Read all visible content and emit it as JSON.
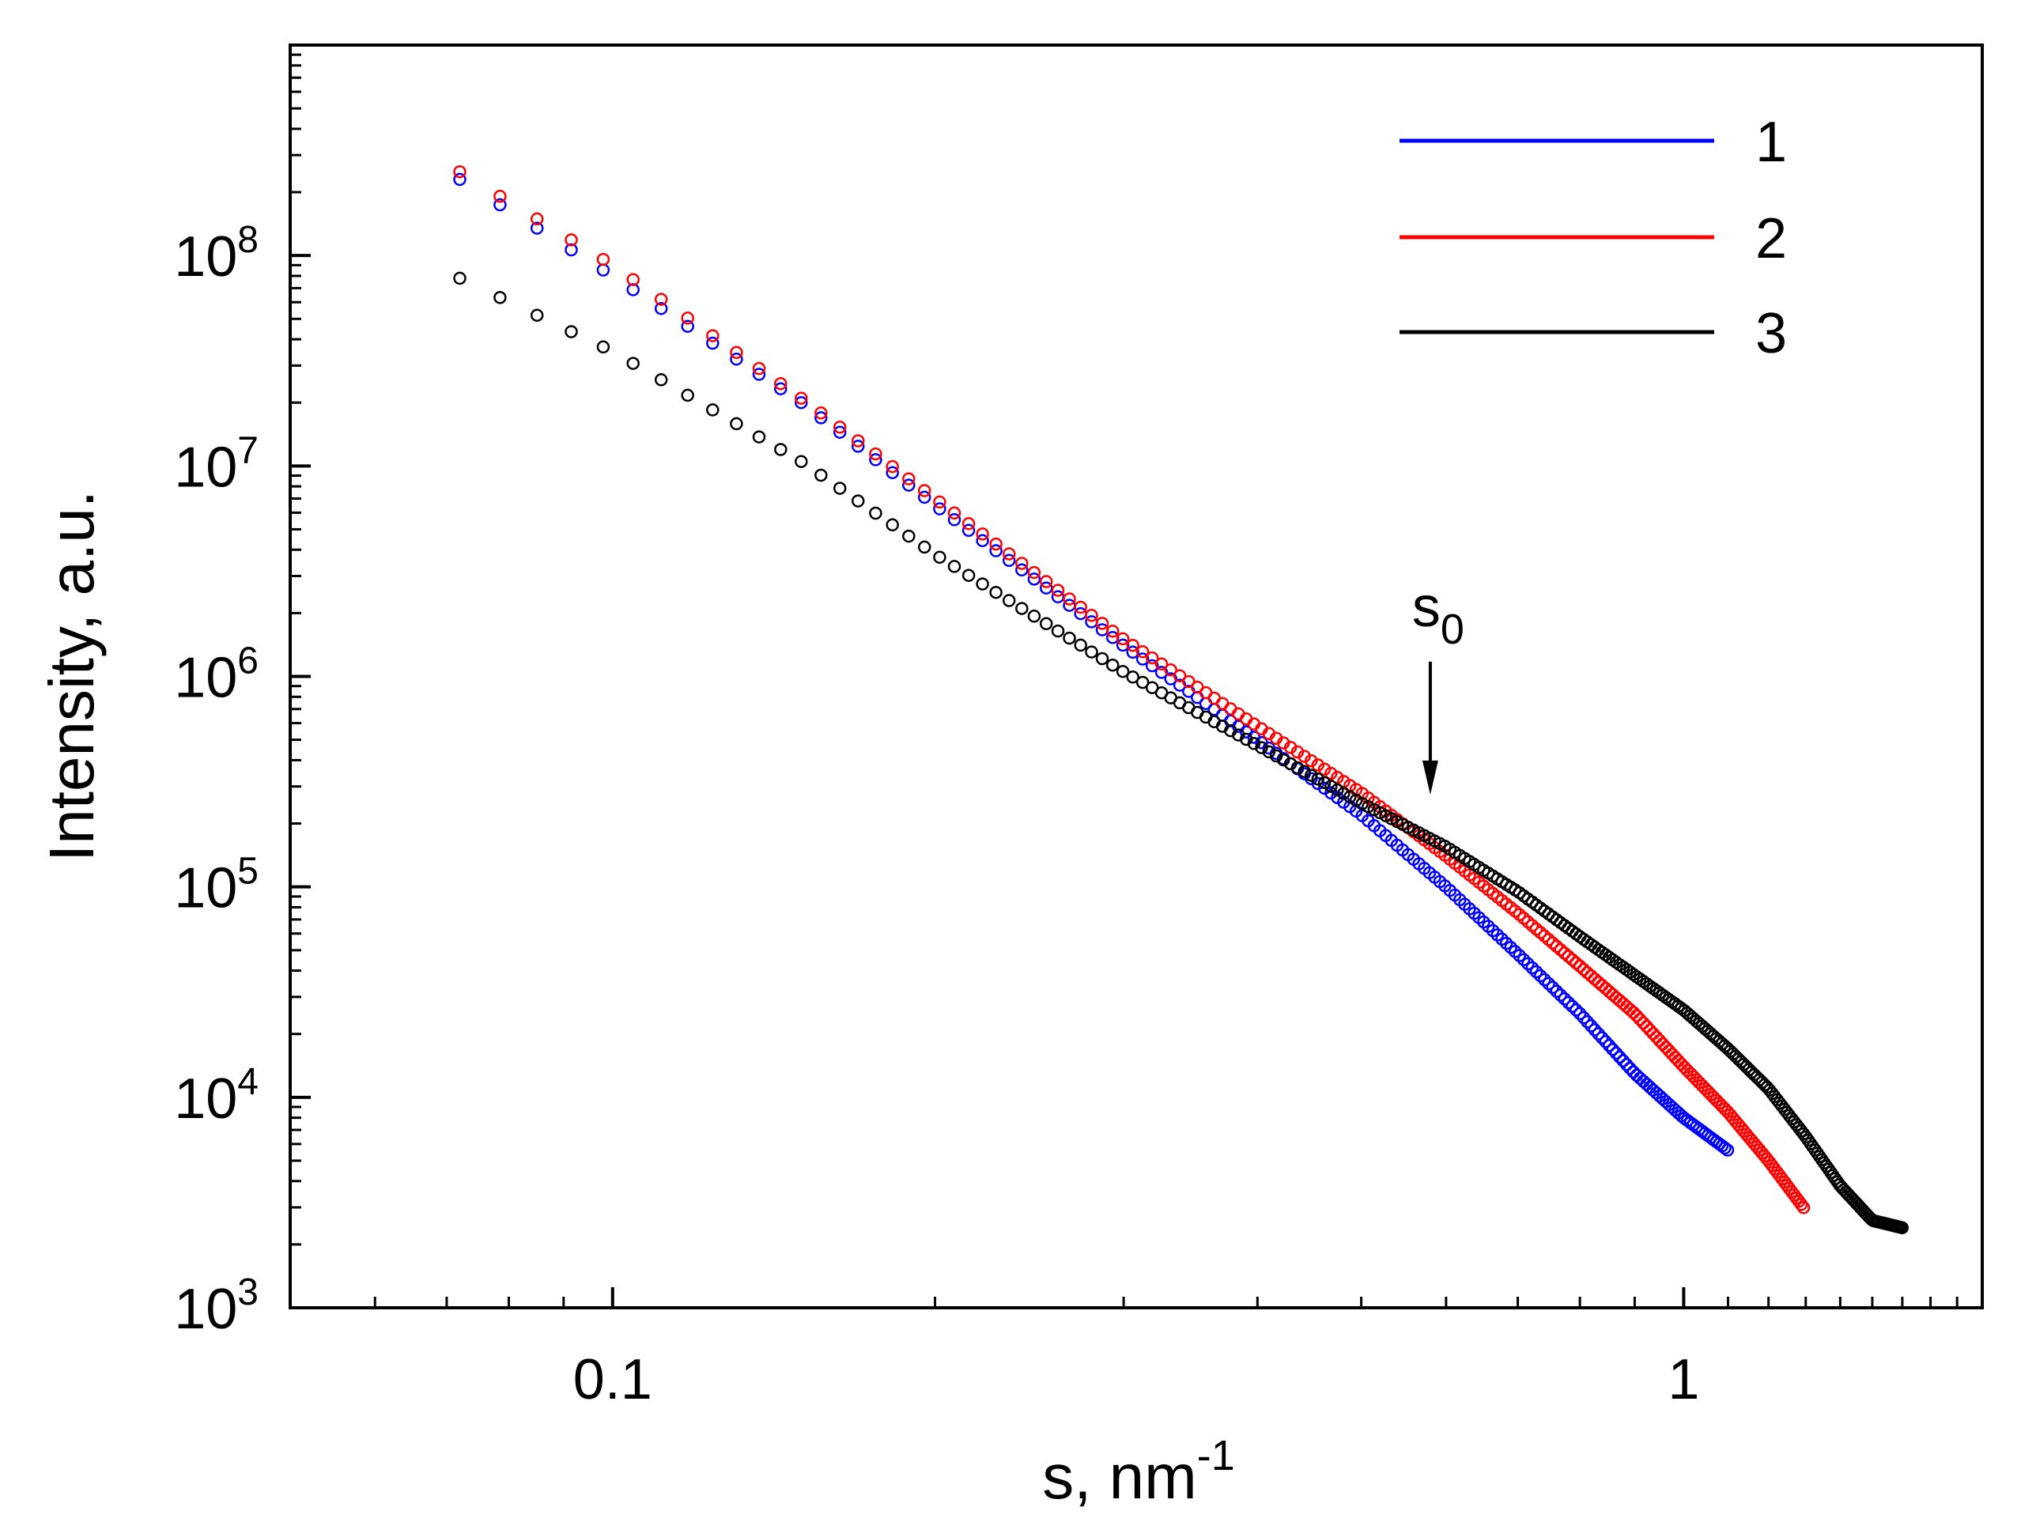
{
  "chart_data": {
    "type": "scatter",
    "title": "",
    "xlabel": {
      "text": "s, nm",
      "superscript": "-1"
    },
    "ylabel": "Intensity, a.u.",
    "x_scale": "log",
    "y_scale": "log",
    "xlim": [
      0.05,
      1.9
    ],
    "ylim": [
      1000,
      1000000000
    ],
    "x_ticks": [
      {
        "value": 0.1,
        "label": "0.1"
      },
      {
        "value": 1,
        "label": "1"
      }
    ],
    "y_ticks": [
      {
        "value": 1000,
        "base": "10",
        "exp": "3"
      },
      {
        "value": 10000,
        "base": "10",
        "exp": "4"
      },
      {
        "value": 100000,
        "base": "10",
        "exp": "5"
      },
      {
        "value": 1000000,
        "base": "10",
        "exp": "6"
      },
      {
        "value": 10000000,
        "base": "10",
        "exp": "7"
      },
      {
        "value": 100000000,
        "base": "10",
        "exp": "8"
      }
    ],
    "legend_position": "top-right",
    "series": [
      {
        "name": "1",
        "color": "#0000ff",
        "anchors": [
          [
            0.072,
            230000000
          ],
          [
            0.1,
            80000000
          ],
          [
            0.15,
            20000000
          ],
          [
            0.2,
            6500000
          ],
          [
            0.3,
            1400000
          ],
          [
            0.4,
            500000
          ],
          [
            0.5,
            220000
          ],
          [
            0.6,
            100000
          ],
          [
            0.7,
            48000
          ],
          [
            0.8,
            25000
          ],
          [
            0.9,
            13000
          ],
          [
            1.0,
            8000
          ],
          [
            1.1,
            5600
          ]
        ]
      },
      {
        "name": "2",
        "color": "#ff0000",
        "anchors": [
          [
            0.072,
            250000000
          ],
          [
            0.1,
            90000000
          ],
          [
            0.15,
            21000000
          ],
          [
            0.2,
            7000000
          ],
          [
            0.3,
            1500000
          ],
          [
            0.4,
            580000
          ],
          [
            0.5,
            280000
          ],
          [
            0.6,
            140000
          ],
          [
            0.7,
            75000
          ],
          [
            0.8,
            42000
          ],
          [
            0.9,
            25000
          ],
          [
            1.0,
            14000
          ],
          [
            1.1,
            8500
          ],
          [
            1.2,
            5000
          ],
          [
            1.3,
            2900
          ]
        ]
      },
      {
        "name": "3",
        "color": "#000000",
        "anchors": [
          [
            0.072,
            78000000
          ],
          [
            0.1,
            35000000
          ],
          [
            0.15,
            10500000
          ],
          [
            0.2,
            3800000
          ],
          [
            0.3,
            1050000
          ],
          [
            0.4,
            470000
          ],
          [
            0.5,
            250000
          ],
          [
            0.6,
            155000
          ],
          [
            0.7,
            95000
          ],
          [
            0.8,
            58000
          ],
          [
            0.9,
            38000
          ],
          [
            1.0,
            26000
          ],
          [
            1.1,
            17000
          ],
          [
            1.2,
            11000
          ],
          [
            1.3,
            6500
          ],
          [
            1.4,
            3800
          ],
          [
            1.5,
            2600
          ],
          [
            1.6,
            2400
          ]
        ]
      }
    ],
    "annotation": {
      "text": "s",
      "subscript": "0",
      "x": 0.58,
      "y": 270000
    }
  }
}
